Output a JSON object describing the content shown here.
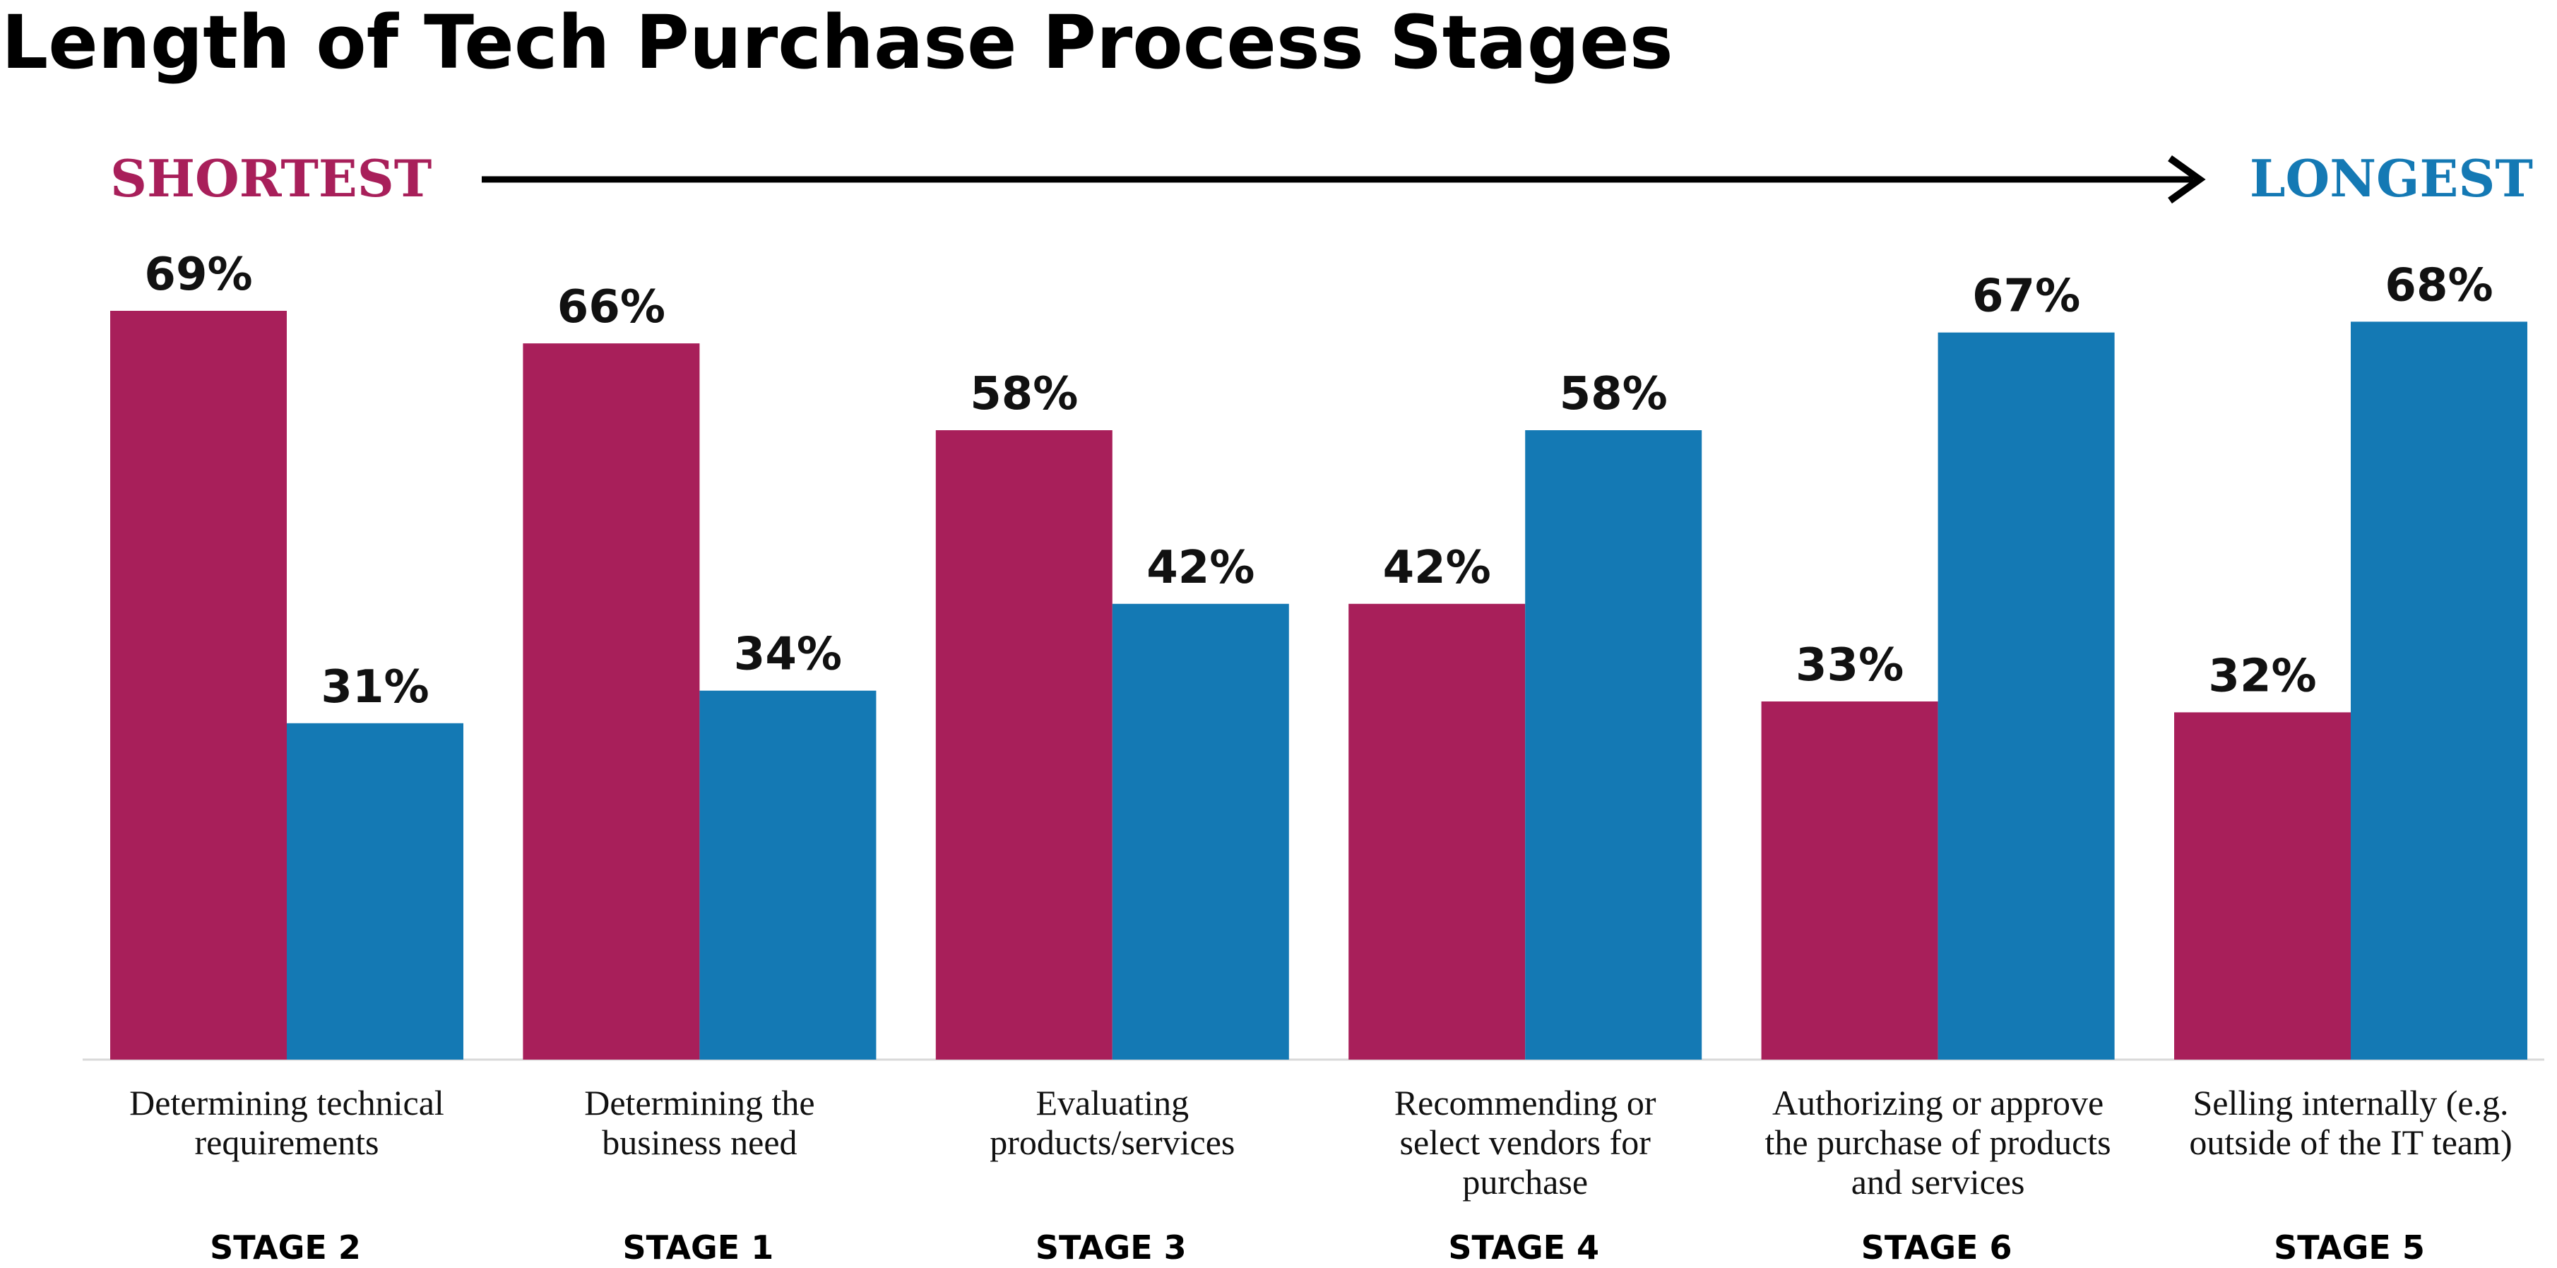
{
  "chart_data": {
    "type": "bar",
    "title": "Length of Tech Purchase Process Stages",
    "scale_labels": {
      "left": "SHORTEST",
      "right": "LONGEST"
    },
    "categories": [
      "Determining technical requirements",
      "Determining the business need",
      "Evaluating products/services",
      "Recommending or select vendors for purchase",
      "Authorizing or approve the purchase of products and services",
      "Selling internally (e.g. outside of the IT team)"
    ],
    "category_lines": [
      [
        "Determining technical",
        "requirements"
      ],
      [
        "Determining the",
        "business need"
      ],
      [
        "Evaluating",
        "products/services"
      ],
      [
        "Recommending or",
        "select vendors for",
        "purchase"
      ],
      [
        "Authorizing or approve",
        "the purchase of products",
        "and services"
      ],
      [
        "Selling internally (e.g.",
        "outside of the IT team)"
      ]
    ],
    "stages": [
      "STAGE 2",
      "STAGE 1",
      "STAGE 3",
      "STAGE 4",
      "STAGE 6",
      "STAGE 5"
    ],
    "series": [
      {
        "values": [
          69,
          66,
          58,
          42,
          33,
          32
        ],
        "labels": [
          "69%",
          "66%",
          "58%",
          "42%",
          "33%",
          "32%"
        ]
      },
      {
        "values": [
          31,
          34,
          42,
          58,
          67,
          68
        ],
        "labels": [
          "31%",
          "34%",
          "42%",
          "58%",
          "67%",
          "68%"
        ]
      }
    ],
    "ylim": [
      0,
      100
    ],
    "grid": false,
    "legend": "none",
    "colors": {
      "shortest": "#A81F5A",
      "longest": "#1479B4",
      "arrow": "#000000",
      "baseline": "#D9D9D9"
    }
  }
}
